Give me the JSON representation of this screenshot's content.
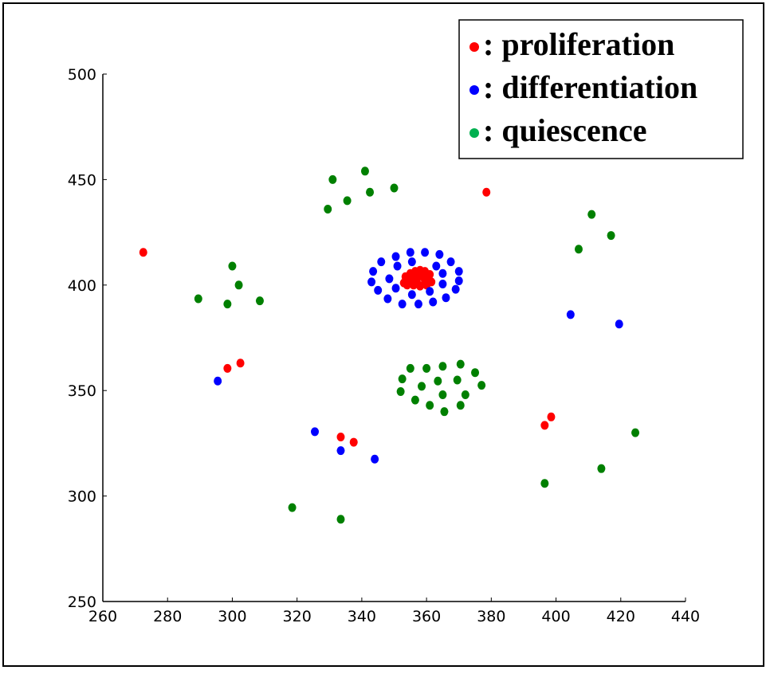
{
  "chart_data": {
    "type": "scatter",
    "xlim": [
      260,
      440
    ],
    "ylim": [
      250,
      500
    ],
    "x_ticks": [
      260,
      280,
      300,
      320,
      340,
      360,
      380,
      400,
      420,
      440
    ],
    "y_ticks": [
      250,
      300,
      350,
      400,
      450,
      500
    ],
    "grid": false,
    "legend_position": "top-right",
    "series": [
      {
        "name": ": proliferation",
        "color": "#ff0000",
        "points": [
          [
            272.5,
            415.5
          ],
          [
            378.5,
            444
          ],
          [
            298.5,
            360.5
          ],
          [
            302.5,
            363
          ],
          [
            333.5,
            328
          ],
          [
            337.5,
            325.5
          ],
          [
            396.5,
            333.5
          ],
          [
            398.5,
            337.5
          ],
          [
            353.5,
            404
          ],
          [
            355,
            405.5
          ],
          [
            356.5,
            406.5
          ],
          [
            358,
            407
          ],
          [
            359.5,
            406.5
          ],
          [
            361,
            405
          ],
          [
            353,
            401
          ],
          [
            354.5,
            402.5
          ],
          [
            356,
            403.5
          ],
          [
            357.5,
            404
          ],
          [
            359,
            404
          ],
          [
            360.5,
            403
          ],
          [
            361.5,
            401.5
          ],
          [
            354,
            400
          ],
          [
            356,
            400
          ],
          [
            358,
            399.5
          ],
          [
            360,
            400
          ],
          [
            357,
            401.5
          ],
          [
            359.5,
            402
          ]
        ]
      },
      {
        "name": ": differentiation",
        "color": "#0000ff",
        "points": [
          [
            295.5,
            354.5
          ],
          [
            325.5,
            330.5
          ],
          [
            333.5,
            321.5
          ],
          [
            344,
            317.5
          ],
          [
            404.5,
            386
          ],
          [
            419.5,
            381.5
          ],
          [
            355,
            415.5
          ],
          [
            359.5,
            415.5
          ],
          [
            364,
            414.5
          ],
          [
            350.5,
            413.5
          ],
          [
            346,
            411
          ],
          [
            367.5,
            411
          ],
          [
            355.5,
            411
          ],
          [
            363,
            409
          ],
          [
            351,
            409
          ],
          [
            343.5,
            406.5
          ],
          [
            370,
            406.5
          ],
          [
            365,
            405.5
          ],
          [
            348.5,
            403
          ],
          [
            343,
            401.5
          ],
          [
            370,
            402
          ],
          [
            365,
            400.5
          ],
          [
            350.5,
            398.5
          ],
          [
            345,
            397.5
          ],
          [
            369,
            398
          ],
          [
            361,
            397
          ],
          [
            355.5,
            395.5
          ],
          [
            348,
            393.5
          ],
          [
            366,
            394
          ],
          [
            352.5,
            391
          ],
          [
            357.5,
            391
          ],
          [
            362,
            392
          ]
        ]
      },
      {
        "name": ": quiescence",
        "color": "#008000",
        "points": [
          [
            331,
            450
          ],
          [
            341,
            454
          ],
          [
            342.5,
            444
          ],
          [
            350,
            446
          ],
          [
            335.5,
            440
          ],
          [
            329.5,
            436
          ],
          [
            300,
            409
          ],
          [
            302,
            400
          ],
          [
            289.5,
            393.5
          ],
          [
            298.5,
            391
          ],
          [
            308.5,
            392.5
          ],
          [
            411,
            433.5
          ],
          [
            417,
            423.5
          ],
          [
            407,
            417
          ],
          [
            318.5,
            294.5
          ],
          [
            333.5,
            289
          ],
          [
            424.5,
            330
          ],
          [
            414,
            313
          ],
          [
            396.5,
            306
          ],
          [
            370.5,
            362.5
          ],
          [
            365,
            361.5
          ],
          [
            360,
            360.5
          ],
          [
            355,
            360.5
          ],
          [
            375,
            358.5
          ],
          [
            352.5,
            355.5
          ],
          [
            363.5,
            354.5
          ],
          [
            369.5,
            355
          ],
          [
            358.5,
            352
          ],
          [
            377,
            352.5
          ],
          [
            352,
            349.5
          ],
          [
            365,
            348
          ],
          [
            372,
            348
          ],
          [
            356.5,
            345.5
          ],
          [
            361,
            343
          ],
          [
            370.5,
            343
          ],
          [
            365.5,
            340
          ]
        ]
      }
    ]
  }
}
